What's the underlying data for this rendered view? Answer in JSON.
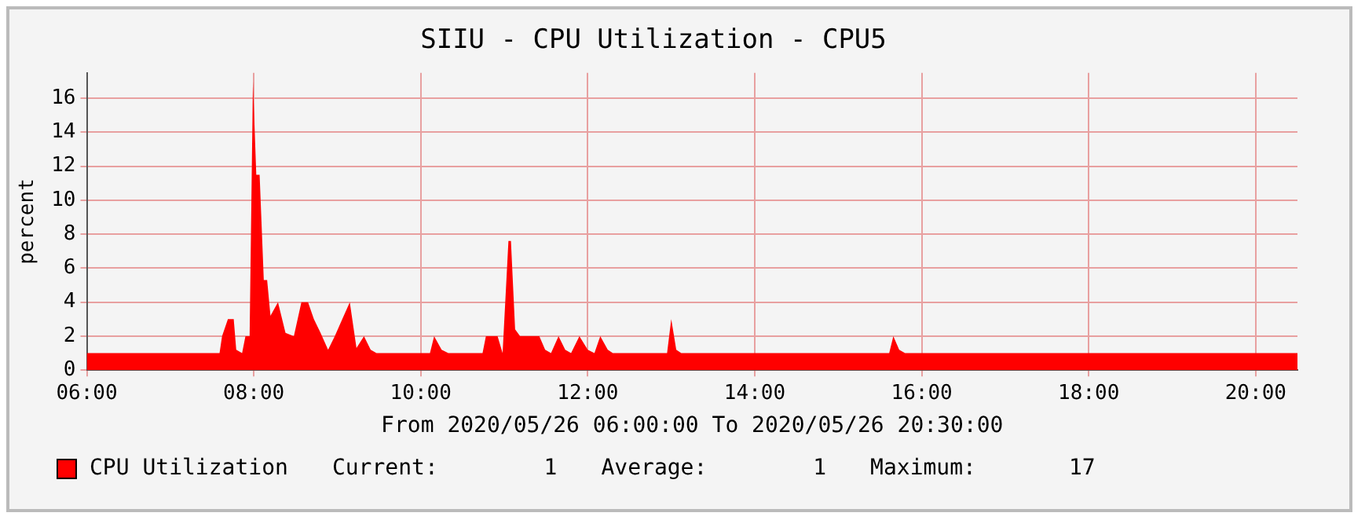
{
  "chart_data": {
    "type": "area",
    "title": "SIIU - CPU Utilization - CPU5",
    "ylabel": "percent",
    "xlabel": "From 2020/05/26 06:00:00 To 2020/05/26 20:30:00",
    "x": [
      6,
      7.59,
      7.62,
      7.69,
      7.76,
      7.79,
      7.86,
      7.9,
      7.95,
      7.99,
      8.03,
      8.07,
      8.12,
      8.16,
      8.2,
      8.29,
      8.38,
      8.48,
      8.57,
      8.65,
      8.72,
      8.8,
      8.89,
      8.97,
      9.06,
      9.15,
      9.23,
      9.32,
      9.4,
      9.47,
      10.11,
      10.16,
      10.25,
      10.33,
      10.74,
      10.78,
      10.92,
      10.98,
      11.05,
      11.08,
      11.13,
      11.19,
      11.42,
      11.49,
      11.56,
      11.65,
      11.73,
      11.8,
      11.9,
      12.0,
      12.08,
      12.15,
      12.24,
      12.3,
      12.95,
      13.0,
      13.06,
      13.12,
      15.61,
      15.66,
      15.73,
      15.8,
      20.5
    ],
    "series": [
      {
        "name": "CPU Utilization",
        "color": "#ff0000",
        "values": [
          1,
          1,
          2,
          3,
          3,
          1.2,
          1,
          2,
          2,
          17,
          11.5,
          11.5,
          5.3,
          5.3,
          3.2,
          4,
          2.2,
          2,
          4,
          4,
          3,
          2.2,
          1.2,
          2,
          3,
          4,
          1.3,
          2,
          1.2,
          1,
          1,
          2,
          1.2,
          1,
          1,
          2,
          2,
          1,
          7.6,
          7.6,
          2.4,
          2,
          2,
          1.2,
          1,
          2,
          1.2,
          1,
          2,
          1.2,
          1,
          2,
          1.2,
          1,
          1,
          3,
          1.2,
          1,
          1,
          2,
          1.2,
          1,
          1
        ]
      }
    ],
    "xlim": [
      6,
      20.5
    ],
    "xticks": [
      {
        "value": 6,
        "label": "06:00"
      },
      {
        "value": 8,
        "label": "08:00"
      },
      {
        "value": 10,
        "label": "10:00"
      },
      {
        "value": 12,
        "label": "12:00"
      },
      {
        "value": 14,
        "label": "14:00"
      },
      {
        "value": 16,
        "label": "16:00"
      },
      {
        "value": 18,
        "label": "18:00"
      },
      {
        "value": 20,
        "label": "20:00"
      }
    ],
    "ylim": [
      0,
      17.5
    ],
    "yticks": [
      0,
      2,
      4,
      6,
      8,
      10,
      12,
      14,
      16
    ],
    "grid": true,
    "legend": "bottom left",
    "annotations": [
      "Current:        1",
      "Average:        1",
      "Maximum:       17"
    ]
  }
}
